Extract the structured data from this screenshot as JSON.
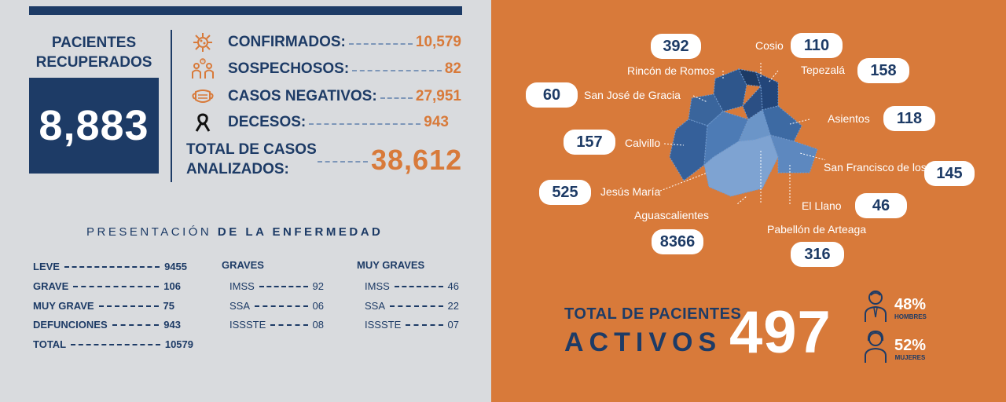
{
  "recuperados": {
    "title": "PACIENTES RECUPERADOS",
    "value": "8,883"
  },
  "stats": [
    {
      "label": "CONFIRMADOS:",
      "value": "10,579",
      "icon": "virus-icon"
    },
    {
      "label": "SOSPECHOSOS:",
      "value": "82",
      "icon": "suspects-icon"
    },
    {
      "label": "CASOS NEGATIVOS:",
      "value": "27,951",
      "icon": "mask-icon"
    },
    {
      "label": "DECESOS:",
      "value": "943",
      "icon": "ribbon-icon"
    }
  ],
  "total": {
    "label": "TOTAL DE CASOS ANALIZADOS:",
    "value": "38,612"
  },
  "presentacion": {
    "title_a": "PRESENTACIÓN",
    "title_b": "DE LA ENFERMEDAD"
  },
  "summary": [
    {
      "label": "LEVE",
      "value": "9455"
    },
    {
      "label": "GRAVE",
      "value": "106"
    },
    {
      "label": "MUY GRAVE",
      "value": "75"
    },
    {
      "label": "DEFUNCIONES",
      "value": "943"
    },
    {
      "label": "TOTAL",
      "value": "10579"
    }
  ],
  "graves": {
    "title": "GRAVES",
    "rows": [
      {
        "label": "IMSS",
        "value": "92"
      },
      {
        "label": "SSA",
        "value": "06"
      },
      {
        "label": "ISSSTE",
        "value": "08"
      }
    ]
  },
  "muy_graves": {
    "title": "MUY GRAVES",
    "rows": [
      {
        "label": "IMSS",
        "value": "46"
      },
      {
        "label": "SSA",
        "value": "22"
      },
      {
        "label": "ISSSTE",
        "value": "07"
      }
    ]
  },
  "municipios": [
    {
      "name": "Rincón de Romos",
      "value": "392"
    },
    {
      "name": "Cosio",
      "value": "110"
    },
    {
      "name": "Tepezalá",
      "value": "158"
    },
    {
      "name": "San José de Gracia",
      "value": "60"
    },
    {
      "name": "Asientos",
      "value": "118"
    },
    {
      "name": "Calvillo",
      "value": "157"
    },
    {
      "name": "San Francisco de los Romo",
      "value": "145"
    },
    {
      "name": "Jesús María",
      "value": "525"
    },
    {
      "name": "El Llano",
      "value": "46"
    },
    {
      "name": "Aguascalientes",
      "value": "8366"
    },
    {
      "name": "Pabellón de Arteaga",
      "value": "316"
    }
  ],
  "activos": {
    "line1": "TOTAL DE PACIENTES",
    "line2": "ACTIVOS",
    "value": "497"
  },
  "gender": [
    {
      "pct": "48%",
      "label": "HOMBRES",
      "icon": "man-icon"
    },
    {
      "pct": "52%",
      "label": "MUJERES",
      "icon": "woman-icon"
    }
  ],
  "colors": {
    "navy": "#1d3b66",
    "orange": "#d87a3a",
    "grey": "#d9dbde"
  }
}
